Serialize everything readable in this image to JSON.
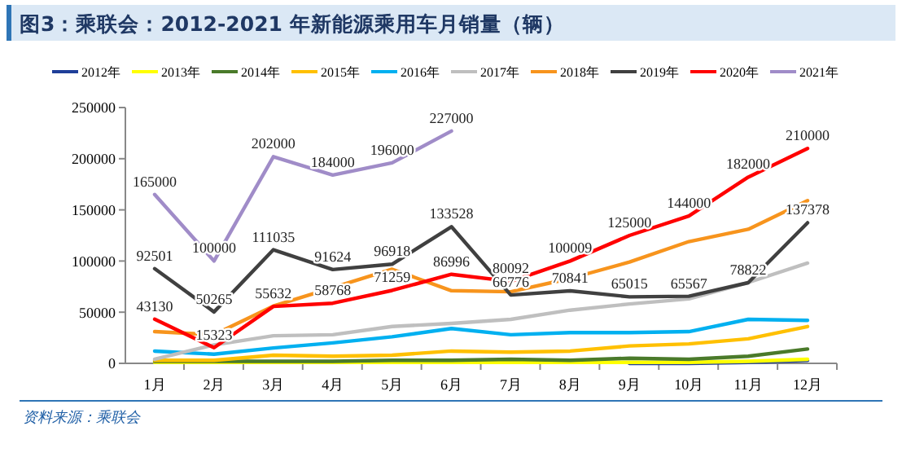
{
  "chart_data": {
    "type": "line",
    "title": "图3：乘联会：2012-2021 年新能源乘用车月销量（辆）",
    "categories": [
      "1月",
      "2月",
      "3月",
      "4月",
      "5月",
      "6月",
      "7月",
      "8月",
      "9月",
      "10月",
      "11月",
      "12月"
    ],
    "ylim": [
      0,
      250000
    ],
    "yticks": [
      0,
      50000,
      100000,
      150000,
      200000,
      250000
    ],
    "grid": false,
    "legend": "top",
    "marker": "none",
    "series": [
      {
        "name": "2012年",
        "color": "#1f3f99",
        "values": [
          null,
          null,
          null,
          null,
          null,
          null,
          null,
          null,
          0,
          0,
          1000,
          3000
        ]
      },
      {
        "name": "2013年",
        "color": "#ffff00",
        "values": [
          1000,
          1000,
          1000,
          1000,
          1000,
          1000,
          1000,
          1000,
          1000,
          1000,
          2000,
          4000
        ]
      },
      {
        "name": "2014年",
        "color": "#4a7a2a",
        "values": [
          2000,
          2000,
          2000,
          2000,
          3000,
          3000,
          4000,
          3000,
          5000,
          4000,
          7000,
          14000
        ]
      },
      {
        "name": "2015年",
        "color": "#ffc000",
        "values": [
          3000,
          3000,
          8000,
          7000,
          8000,
          12000,
          11000,
          12000,
          17000,
          19000,
          24000,
          36000
        ]
      },
      {
        "name": "2016年",
        "color": "#00b0f0",
        "values": [
          12000,
          9000,
          15000,
          20000,
          26000,
          34000,
          28000,
          30000,
          30000,
          31000,
          43000,
          42000
        ]
      },
      {
        "name": "2017年",
        "color": "#bfbfbf",
        "values": [
          4000,
          18000,
          27000,
          28000,
          36000,
          39000,
          43000,
          52000,
          58000,
          63000,
          79000,
          98000
        ]
      },
      {
        "name": "2018年",
        "color": "#f7941d",
        "values": [
          31000,
          28000,
          56000,
          74000,
          92000,
          71000,
          70000,
          83000,
          99000,
          119000,
          131000,
          159000
        ]
      },
      {
        "name": "2019年",
        "color": "#404040",
        "values": [
          92501,
          50265,
          111035,
          91624,
          96918,
          133528,
          66776,
          70841,
          65015,
          65567,
          78822,
          137378
        ],
        "value_labels": [
          "92501",
          "50265",
          "111035",
          "91624",
          "96918",
          "133528",
          "66776",
          "70841",
          "65015",
          "65567",
          "78822",
          "137378"
        ]
      },
      {
        "name": "2020年",
        "color": "#ff0000",
        "values": [
          43130,
          15323,
          55632,
          58768,
          71259,
          86996,
          80092,
          100009,
          125000,
          144000,
          182000,
          210000
        ],
        "value_labels": [
          "43130",
          "15323",
          "55632",
          "58768",
          "71259",
          "86996",
          "80092",
          "100009",
          "125000",
          "144000",
          "182000",
          "210000"
        ]
      },
      {
        "name": "2021年",
        "color": "#a08cc8",
        "values": [
          165000,
          100000,
          202000,
          184000,
          196000,
          227000,
          null,
          null,
          null,
          null,
          null,
          null
        ],
        "value_labels": [
          "165000",
          "100000",
          "202000",
          "184000",
          "196000",
          "227000",
          null,
          null,
          null,
          null,
          null,
          null
        ]
      }
    ],
    "annotations": [
      "资料来源：乘联会"
    ]
  }
}
